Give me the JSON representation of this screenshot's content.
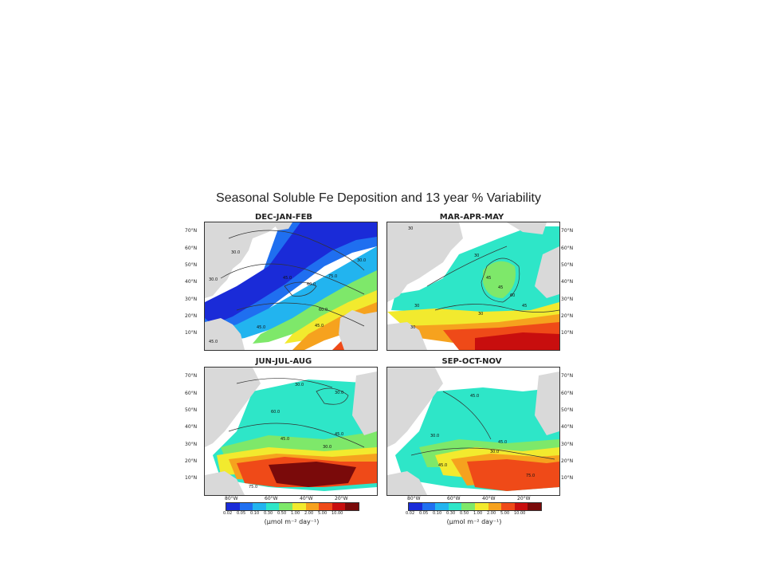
{
  "figure": {
    "title": "Seasonal Soluble Fe Deposition and 13 year % Variability",
    "panels": [
      {
        "name": "DEC-JAN-FEB",
        "contour_labels": [
          "30.0",
          "30.0",
          "45.0",
          "60.0",
          "75.0",
          "60.0",
          "45.0",
          "45.0",
          "45.0",
          "30.0"
        ]
      },
      {
        "name": "MAR-APR-MAY",
        "contour_labels": [
          "30",
          "30",
          "45",
          "45",
          "60",
          "45",
          "30",
          "30",
          "30"
        ]
      },
      {
        "name": "JUN-JUL-AUG",
        "contour_labels": [
          "30.0",
          "30.0",
          "60.0",
          "45.0",
          "45.0",
          "30.0",
          "75.0"
        ]
      },
      {
        "name": "SEP-OCT-NOV",
        "contour_labels": [
          "45.0",
          "30.0",
          "45.0",
          "30.0",
          "45.0",
          "75.0"
        ]
      }
    ],
    "lat_labels": [
      "70°N",
      "60°N",
      "50°N",
      "40°N",
      "30°N",
      "20°N",
      "10°N"
    ],
    "lon_labels": [
      "80°W",
      "60°W",
      "40°W",
      "20°W"
    ],
    "colorbar": {
      "ticks": [
        "0.02",
        "0.05",
        "0.10",
        "0.30",
        "0.50",
        "1.00",
        "2.00",
        "5.00",
        "10.00"
      ],
      "colors": [
        "#1a2bd8",
        "#1f6ff0",
        "#22b4ef",
        "#2ee6c8",
        "#7ee86a",
        "#f2ea2e",
        "#f6a21e",
        "#ef4a18",
        "#c80e0e",
        "#7a0a0a"
      ],
      "units": "(μmol m⁻² day⁻¹)"
    },
    "land_color": "#d9d9d9",
    "ocean_color": "#ffffff"
  }
}
